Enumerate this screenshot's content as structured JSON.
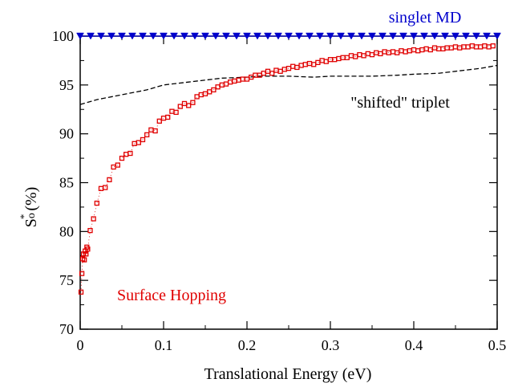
{
  "chart_data": {
    "type": "scatter",
    "xlabel": "Translational Energy (eV)",
    "ylabel_main": "S",
    "ylabel_sup": "*",
    "ylabel_sub": "o",
    "ylabel_unit": "(%)",
    "xlim": [
      0,
      0.5
    ],
    "ylim": [
      70,
      100
    ],
    "xticks": [
      0,
      0.1,
      0.2,
      0.3,
      0.4,
      0.5
    ],
    "xticklabels": [
      "0",
      "0.1",
      "0.2",
      "0.3",
      "0.4",
      "0.5"
    ],
    "yticks": [
      70,
      75,
      80,
      85,
      90,
      95,
      100
    ],
    "yticklabels": [
      "70",
      "75",
      "80",
      "85",
      "90",
      "95",
      "100"
    ],
    "grid": false,
    "series": [
      {
        "name": "singlet MD",
        "marker": "triangle-down",
        "color": "#0000cc",
        "x": [
          0.0,
          0.0125,
          0.025,
          0.0375,
          0.05,
          0.0625,
          0.075,
          0.0875,
          0.1,
          0.1125,
          0.125,
          0.1375,
          0.15,
          0.1625,
          0.175,
          0.1875,
          0.2,
          0.2125,
          0.225,
          0.2375,
          0.25,
          0.2625,
          0.275,
          0.2875,
          0.3,
          0.3125,
          0.325,
          0.3375,
          0.35,
          0.3625,
          0.375,
          0.3875,
          0.4,
          0.4125,
          0.425,
          0.4375,
          0.45,
          0.4625,
          0.475,
          0.4875,
          0.5
        ],
        "y": [
          100,
          100,
          100,
          100,
          100,
          100,
          100,
          100,
          100,
          100,
          100,
          100,
          100,
          100,
          100,
          100,
          100,
          100,
          100,
          100,
          100,
          100,
          100,
          100,
          100,
          100,
          100,
          100,
          100,
          100,
          100,
          100,
          100,
          100,
          100,
          100,
          100,
          100,
          100,
          100,
          100
        ]
      },
      {
        "name": "\"shifted\" triplet",
        "marker": "dashed-line",
        "color": "#000000",
        "x": [
          0.0,
          0.02,
          0.05,
          0.08,
          0.1,
          0.13,
          0.15,
          0.17,
          0.2,
          0.22,
          0.25,
          0.28,
          0.3,
          0.32,
          0.35,
          0.38,
          0.4,
          0.43,
          0.45,
          0.48,
          0.5
        ],
        "y": [
          93.0,
          93.5,
          94.0,
          94.5,
          95.0,
          95.3,
          95.5,
          95.7,
          95.8,
          95.9,
          95.9,
          95.8,
          95.9,
          95.9,
          95.9,
          96.0,
          96.1,
          96.2,
          96.4,
          96.7,
          97.0
        ]
      },
      {
        "name": "Surface Hopping",
        "marker": "square",
        "color": "#e00000",
        "x": [
          0.001,
          0.002,
          0.003,
          0.004,
          0.005,
          0.006,
          0.007,
          0.008,
          0.009,
          0.012,
          0.016,
          0.02,
          0.025,
          0.03,
          0.035,
          0.04,
          0.045,
          0.05,
          0.055,
          0.06,
          0.065,
          0.07,
          0.075,
          0.08,
          0.085,
          0.09,
          0.095,
          0.1,
          0.105,
          0.11,
          0.115,
          0.12,
          0.125,
          0.13,
          0.135,
          0.14,
          0.145,
          0.15,
          0.155,
          0.16,
          0.165,
          0.17,
          0.175,
          0.18,
          0.185,
          0.19,
          0.195,
          0.2,
          0.205,
          0.21,
          0.215,
          0.22,
          0.225,
          0.23,
          0.235,
          0.24,
          0.245,
          0.25,
          0.255,
          0.26,
          0.265,
          0.27,
          0.275,
          0.28,
          0.285,
          0.29,
          0.295,
          0.3,
          0.305,
          0.31,
          0.315,
          0.32,
          0.325,
          0.33,
          0.335,
          0.34,
          0.345,
          0.35,
          0.355,
          0.36,
          0.365,
          0.37,
          0.375,
          0.38,
          0.385,
          0.39,
          0.395,
          0.4,
          0.405,
          0.41,
          0.415,
          0.42,
          0.425,
          0.43,
          0.435,
          0.44,
          0.445,
          0.45,
          0.455,
          0.46,
          0.465,
          0.47,
          0.475,
          0.48,
          0.485,
          0.49,
          0.495
        ],
        "y": [
          73.8,
          75.7,
          77.2,
          77.7,
          77.1,
          78.0,
          77.7,
          78.4,
          78.2,
          80.1,
          81.3,
          82.9,
          84.4,
          84.5,
          85.3,
          86.6,
          86.8,
          87.5,
          87.9,
          88.0,
          89.0,
          89.1,
          89.4,
          89.9,
          90.4,
          90.3,
          91.3,
          91.6,
          91.7,
          92.3,
          92.2,
          92.8,
          93.1,
          92.9,
          93.2,
          93.8,
          94.0,
          94.1,
          94.3,
          94.5,
          94.8,
          95.0,
          95.1,
          95.3,
          95.4,
          95.5,
          95.6,
          95.6,
          95.8,
          96.0,
          96.0,
          96.2,
          96.4,
          96.2,
          96.5,
          96.4,
          96.6,
          96.7,
          96.9,
          96.8,
          97.0,
          97.1,
          97.2,
          97.1,
          97.3,
          97.5,
          97.4,
          97.6,
          97.6,
          97.7,
          97.8,
          97.8,
          98.0,
          97.9,
          98.1,
          98.0,
          98.2,
          98.1,
          98.3,
          98.2,
          98.4,
          98.3,
          98.4,
          98.3,
          98.5,
          98.4,
          98.5,
          98.6,
          98.5,
          98.6,
          98.7,
          98.6,
          98.8,
          98.7,
          98.7,
          98.8,
          98.8,
          98.9,
          98.8,
          98.9,
          98.9,
          99.0,
          98.9,
          98.9,
          99.0,
          98.9,
          99.0
        ]
      }
    ]
  },
  "labels": {
    "singlet": "singlet MD",
    "triplet": "\"shifted\" triplet",
    "hopping": "Surface Hopping"
  },
  "colors": {
    "singlet": "#0000cc",
    "hopping": "#e00000",
    "triplet": "#000000"
  }
}
